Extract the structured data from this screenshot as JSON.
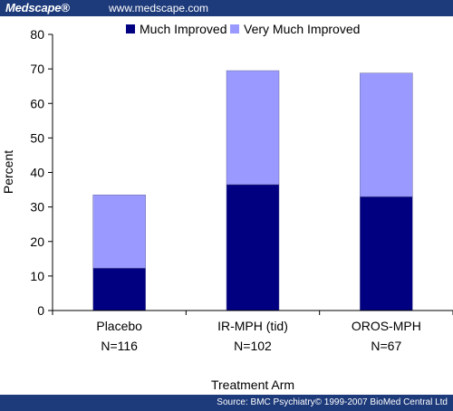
{
  "header": {
    "logo": "Medscape®",
    "url": "www.medscape.com"
  },
  "footer": {
    "source": "Source: BMC Psychiatry© 1999-2007 BioMed Central Ltd"
  },
  "chart_data": {
    "type": "bar",
    "stacked": true,
    "categories": [
      "Placebo",
      "IR-MPH (tid)",
      "OROS-MPH"
    ],
    "category_sublabels": [
      "N=116",
      "N=102",
      "N=67"
    ],
    "series": [
      {
        "name": "Much Improved",
        "color": "#000080",
        "values": [
          12.3,
          36.5,
          33.0
        ]
      },
      {
        "name": "Very Much Improved",
        "color": "#9999ff",
        "values": [
          21.2,
          33.0,
          35.8
        ]
      }
    ],
    "xlabel": "Treatment Arm",
    "ylabel": "Percent",
    "ylim": [
      0,
      80
    ],
    "yticks": [
      0,
      10,
      20,
      30,
      40,
      50,
      60,
      70,
      80
    ],
    "legend_position": "top",
    "grid": false
  }
}
